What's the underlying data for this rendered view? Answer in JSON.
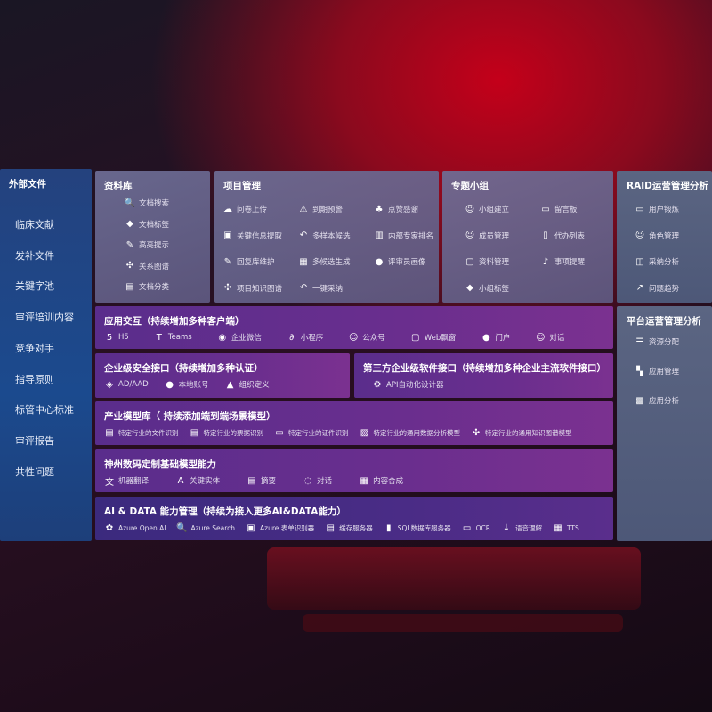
{
  "left": {
    "title": "外部文件",
    "items": [
      "临床文献",
      "发补文件",
      "关键字池",
      "审评培训内容",
      "竞争对手",
      "指导原则",
      "标管中心标准",
      "审评报告",
      "共性问题"
    ]
  },
  "library": {
    "title": "资料库",
    "items": [
      {
        "label": "文档搜索",
        "icon": "doc-search-icon"
      },
      {
        "label": "文档标签",
        "icon": "tag-icon"
      },
      {
        "label": "高亮提示",
        "icon": "pen-icon"
      },
      {
        "label": "关系图谱",
        "icon": "graph-icon"
      },
      {
        "label": "文档分类",
        "icon": "doc-category-icon"
      }
    ]
  },
  "project": {
    "title": "项目管理",
    "items": [
      {
        "label": "问卷上传",
        "icon": "cloud-upload-icon"
      },
      {
        "label": "到期预警",
        "icon": "alarm-icon"
      },
      {
        "label": "点赞感谢",
        "icon": "thumbs-up-icon"
      },
      {
        "label": "关键信息提取",
        "icon": "extract-icon"
      },
      {
        "label": "多样本候选",
        "icon": "reply-all-icon"
      },
      {
        "label": "内部专家排名",
        "icon": "ranking-icon"
      },
      {
        "label": "回复库维护",
        "icon": "edit-icon"
      },
      {
        "label": "多候选生成",
        "icon": "puzzle-icon"
      },
      {
        "label": "评审员画像",
        "icon": "user-icon"
      },
      {
        "label": "项目知识图谱",
        "icon": "network-icon"
      },
      {
        "label": "一键采纳",
        "icon": "reply-icon"
      }
    ]
  },
  "group": {
    "title": "专题小组",
    "items": [
      {
        "label": "小组建立",
        "icon": "group-icon"
      },
      {
        "label": "留言板",
        "icon": "bbs-icon"
      },
      {
        "label": "成员管理",
        "icon": "member-icon"
      },
      {
        "label": "代办列表",
        "icon": "clipboard-icon"
      },
      {
        "label": "资料管理",
        "icon": "folder-icon"
      },
      {
        "label": "事项提醒",
        "icon": "bell-icon"
      },
      {
        "label": "小组标签",
        "icon": "tag-icon"
      }
    ]
  },
  "raid": {
    "title": "RAID运营管理分析",
    "items": [
      {
        "label": "用户锻炼",
        "icon": "id-card-icon"
      },
      {
        "label": "角色管理",
        "icon": "users-icon"
      },
      {
        "label": "采纳分析",
        "icon": "qa-icon"
      },
      {
        "label": "问题趋势",
        "icon": "trend-icon"
      }
    ]
  },
  "platform": {
    "title": "平台运营管理分析",
    "items": [
      {
        "label": "资源分配",
        "icon": "checklist-icon"
      },
      {
        "label": "应用管理",
        "icon": "apps-icon"
      },
      {
        "label": "应用分析",
        "icon": "analysis-icon"
      }
    ]
  },
  "interaction": {
    "title": "应用交互（持续增加多种客户端）",
    "items": [
      {
        "label": "H5",
        "icon": "html5-icon"
      },
      {
        "label": "Teams",
        "icon": "teams-icon"
      },
      {
        "label": "企业微信",
        "icon": "wechat-icon"
      },
      {
        "label": "小程序",
        "icon": "miniprogram-icon"
      },
      {
        "label": "公众号",
        "icon": "official-account-icon"
      },
      {
        "label": "Web飘窗",
        "icon": "window-icon"
      },
      {
        "label": "门户",
        "icon": "portal-icon"
      },
      {
        "label": "对话",
        "icon": "chat-users-icon"
      }
    ]
  },
  "security": {
    "title": "企业级安全接口（持续增加多种认证）",
    "items": [
      {
        "label": "AD/AAD",
        "icon": "ad-icon"
      },
      {
        "label": "本地账号",
        "icon": "account-icon"
      },
      {
        "label": "组织定义",
        "icon": "org-icon"
      }
    ]
  },
  "thirdparty": {
    "title": "第三方企业级软件接口（持续增加多种企业主流软件接口）",
    "items": [
      {
        "label": "API自动化设计器",
        "icon": "gear-icon"
      }
    ]
  },
  "industry": {
    "title": "产业模型库（ 持续添加端到端场景模型）",
    "items": [
      {
        "label": "特定行业的文件识别",
        "icon": "file-icon"
      },
      {
        "label": "特定行业的票据识别",
        "icon": "receipt-icon"
      },
      {
        "label": "特定行业的证件识别",
        "icon": "id-card-icon"
      },
      {
        "label": "特定行业的通用数据分析模型",
        "icon": "chart-icon"
      },
      {
        "label": "特定行业的通用知识图谱模型",
        "icon": "network-icon"
      }
    ]
  },
  "base": {
    "title": "神州数码定制基础模型能力",
    "items": [
      {
        "label": "机器翻译",
        "icon": "translate-icon"
      },
      {
        "label": "关键实体",
        "icon": "entity-icon"
      },
      {
        "label": "摘要",
        "icon": "summary-icon"
      },
      {
        "label": "对话",
        "icon": "chat-icon"
      },
      {
        "label": "内容合成",
        "icon": "puzzle-icon"
      }
    ]
  },
  "aidata": {
    "title": "AI & DATA 能力管理（持续为接入更多AI&DATA能力）",
    "items": [
      {
        "label": "Azure Open AI",
        "icon": "openai-icon"
      },
      {
        "label": "Azure Search",
        "icon": "search-icon"
      },
      {
        "label": "Azure 表单识别器",
        "icon": "form-icon"
      },
      {
        "label": "缓存服务器",
        "icon": "cache-icon"
      },
      {
        "label": "SQL数据库服务器",
        "icon": "database-icon"
      },
      {
        "label": "OCR",
        "icon": "ocr-icon"
      },
      {
        "label": "语音理解",
        "icon": "speech-icon"
      },
      {
        "label": "TTS",
        "icon": "tts-icon"
      }
    ]
  }
}
